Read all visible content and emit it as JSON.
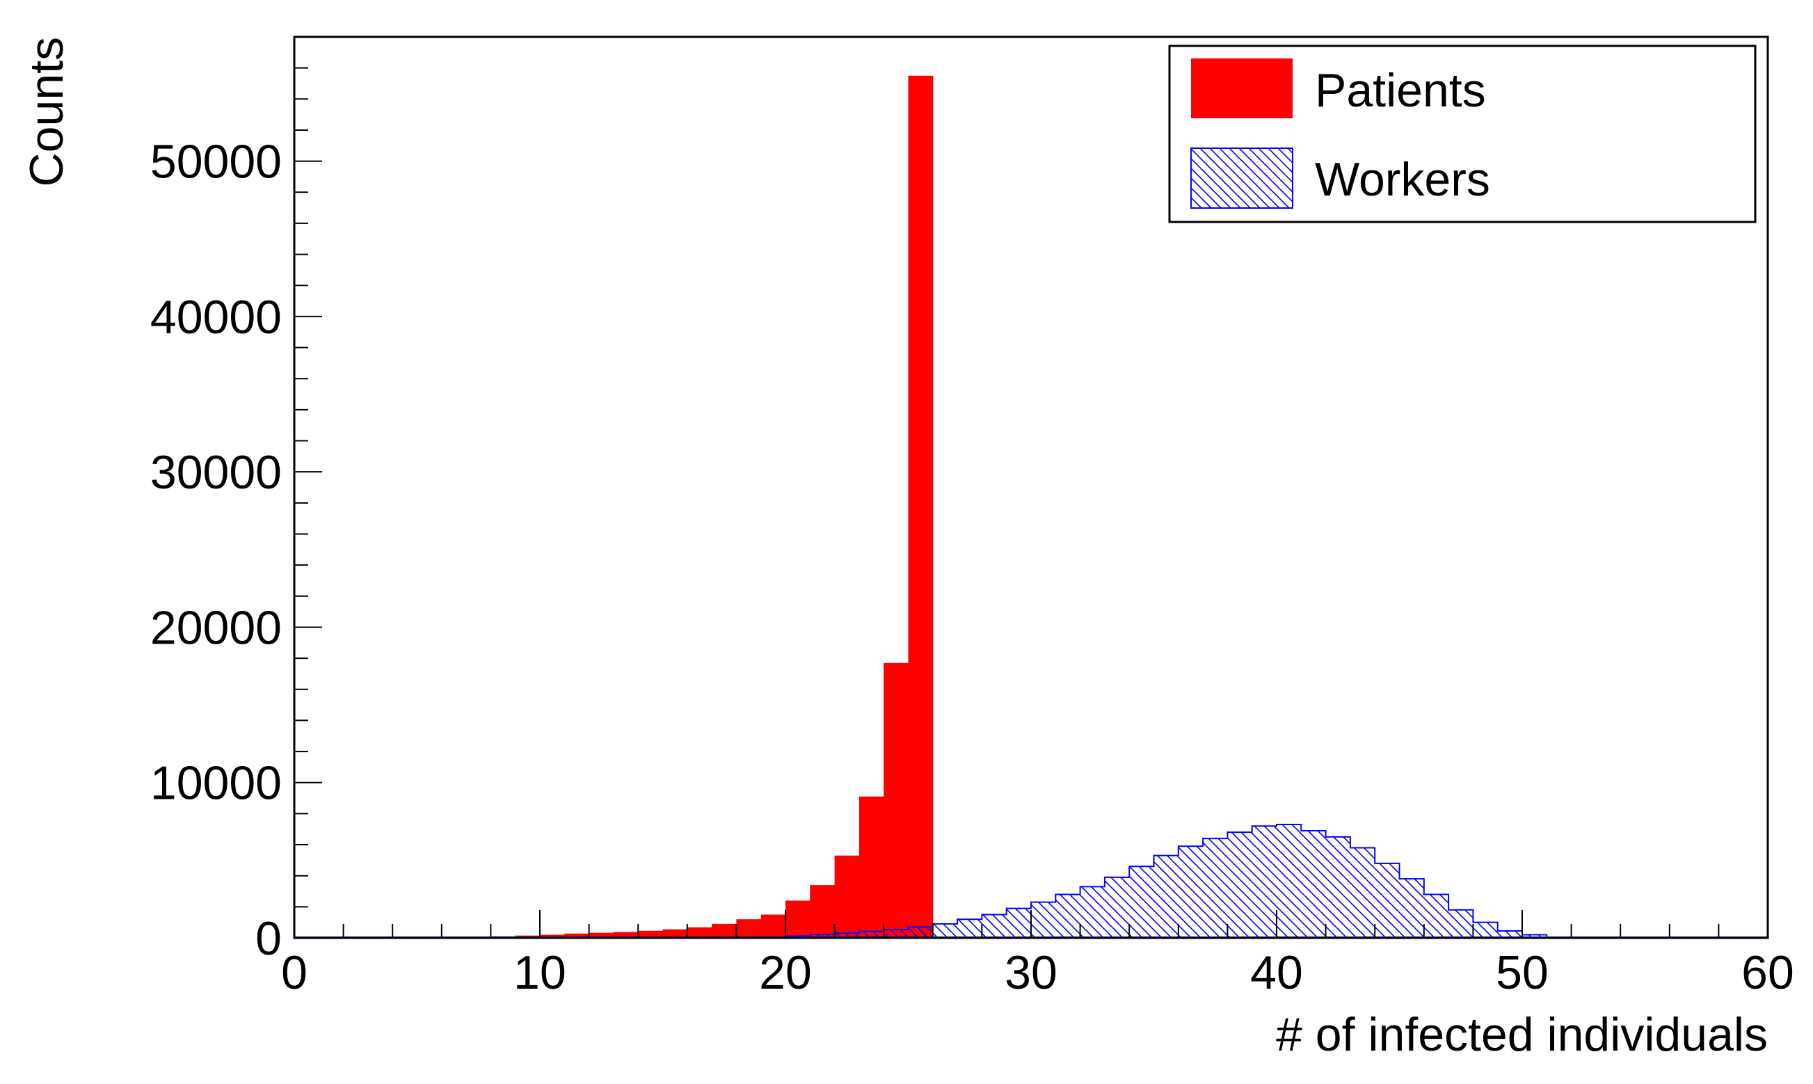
{
  "chart_data": {
    "type": "bar",
    "xlabel": "# of infected individuals",
    "ylabel": "Counts",
    "xlim": [
      0,
      60
    ],
    "ylim": [
      0,
      58000
    ],
    "x_major_ticks": [
      0,
      10,
      20,
      30,
      40,
      50,
      60
    ],
    "x_tick_labels": [
      "0",
      "10",
      "20",
      "30",
      "40",
      "50",
      "60"
    ],
    "y_major_ticks": [
      0,
      10000,
      20000,
      30000,
      40000,
      50000
    ],
    "y_tick_labels": [
      "0",
      "10000",
      "20000",
      "30000",
      "40000",
      "50000"
    ],
    "bin_width": 1,
    "legend_position": "top-right",
    "series": [
      {
        "name": "Patients",
        "style": "solid fill",
        "color": "#ff0000",
        "bin_starts": [
          8,
          9,
          10,
          11,
          12,
          13,
          14,
          15,
          16,
          17,
          18,
          19,
          20,
          21,
          22,
          23,
          24,
          25
        ],
        "values": [
          100,
          150,
          200,
          280,
          330,
          380,
          460,
          550,
          680,
          900,
          1200,
          1500,
          2400,
          3400,
          5300,
          9100,
          17700,
          55500
        ]
      },
      {
        "name": "Workers",
        "style": "hatched",
        "color": "#0000ff",
        "bin_starts": [
          19,
          20,
          21,
          22,
          23,
          24,
          25,
          26,
          27,
          28,
          29,
          30,
          31,
          32,
          33,
          34,
          35,
          36,
          37,
          38,
          39,
          40,
          41,
          42,
          43,
          44,
          45,
          46,
          47,
          48,
          49,
          50
        ],
        "values": [
          50,
          120,
          220,
          300,
          420,
          540,
          700,
          900,
          1200,
          1500,
          1900,
          2300,
          2800,
          3300,
          3900,
          4600,
          5300,
          5900,
          6400,
          6800,
          7200,
          7300,
          6900,
          6500,
          5800,
          4800,
          3800,
          2800,
          1800,
          1000,
          450,
          200
        ]
      }
    ]
  }
}
